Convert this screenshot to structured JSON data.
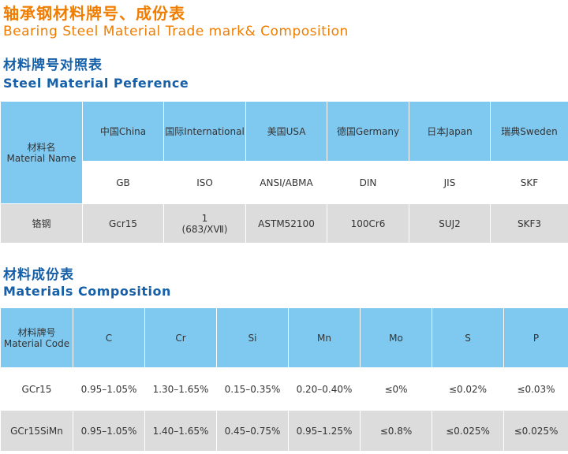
{
  "header": {
    "title_cn": "轴承钢材料牌号、成份表",
    "title_en": "Bearing Steel Material Trade mark& Composition"
  },
  "reference": {
    "title_cn": "材料牌号对照表",
    "title_en": "Steel Material Peference",
    "name_header_cn": "材料名",
    "name_header_en": "Material Name",
    "columns": [
      {
        "region": "中国China",
        "standard": "GB"
      },
      {
        "region": "国际International",
        "standard": "ISO"
      },
      {
        "region": "美国USA",
        "standard": "ANSI/ABMA"
      },
      {
        "region": "德国Germany",
        "standard": "DIN"
      },
      {
        "region": "日本Japan",
        "standard": "JIS"
      },
      {
        "region": "瑞典Sweden",
        "standard": "SKF"
      }
    ],
    "row": {
      "name": "铬钢",
      "values": [
        "Gcr15",
        "1",
        "ASTM52100",
        "100Cr6",
        "SUJ2",
        "SKF3"
      ],
      "iso_sub": "(683/XⅦ)"
    }
  },
  "composition": {
    "title_cn": "材料成份表",
    "title_en": "Materials Composition",
    "code_header_cn": "材料牌号",
    "code_header_en": "Material Code",
    "elements": [
      "C",
      "Cr",
      "Si",
      "Mn",
      "Mo",
      "S",
      "P"
    ],
    "rows": [
      {
        "code": "GCr15",
        "values": [
          "0.95–1.05%",
          "1.30–1.65%",
          "0.15–0.35%",
          "0.20–0.40%",
          "≤0%",
          "≤0.02%",
          "≤0.03%"
        ]
      },
      {
        "code": "GCr15SiMn",
        "values": [
          "0.95–1.05%",
          "1.40–1.65%",
          "0.45–0.75%",
          "0.95–1.25%",
          "≤0.8%",
          "≤0.025%",
          "≤0.025%"
        ]
      }
    ]
  }
}
